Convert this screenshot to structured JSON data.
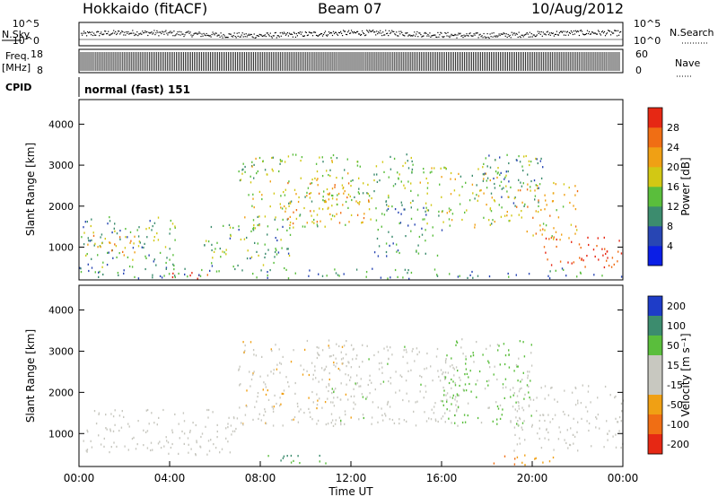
{
  "header": {
    "station": "Hokkaido (fitACF)",
    "beam": "Beam 07",
    "date": "10/Aug/2012"
  },
  "strips": {
    "noise": {
      "left_label_top": "N.Sky",
      "left_ticks": [
        "10^5",
        "10^0"
      ],
      "right_ticks": [
        "10^5",
        "10^0"
      ],
      "right_label": "N.Search"
    },
    "freq": {
      "left_label_top": "Freq.",
      "left_label_unit": "[MHz]",
      "left_ticks": [
        "18",
        "8"
      ],
      "right_ticks": [
        "60",
        "0"
      ],
      "right_label": "Nave"
    },
    "cpid": {
      "left_label": "CPID",
      "text": "normal (fast) 151"
    }
  },
  "chart_data": [
    {
      "type": "heatmap",
      "title": "",
      "ylabel": "Slant Range [km]",
      "xlabel": "",
      "xlim": [
        0,
        24
      ],
      "ylim": [
        200,
        4600
      ],
      "yticks": [
        "1000",
        "2000",
        "3000",
        "4000"
      ],
      "colorbar": {
        "label": "Power [dB]",
        "ticks": [
          "4",
          "8",
          "12",
          "16",
          "20",
          "24",
          "28"
        ],
        "colors": [
          "#0a1ee6",
          "#2846b4",
          "#3c8c6e",
          "#5abe3c",
          "#d2c814",
          "#f0a014",
          "#f06e14",
          "#e62814"
        ],
        "range": [
          0,
          32
        ]
      },
      "regions": [
        {
          "t0": 0,
          "t1": 4.5,
          "r0": 500,
          "r1": 1800,
          "level": 12
        },
        {
          "t0": 0,
          "t1": 2.5,
          "r0": 800,
          "r1": 1300,
          "level": 22
        },
        {
          "t0": 4,
          "t1": 6,
          "r0": 250,
          "r1": 450,
          "level": 30
        },
        {
          "t0": 5.5,
          "t1": 9.5,
          "r0": 500,
          "r1": 1600,
          "level": 13
        },
        {
          "t0": 7,
          "t1": 12,
          "r0": 1500,
          "r1": 3300,
          "level": 16
        },
        {
          "t0": 9,
          "t1": 13,
          "r0": 1600,
          "r1": 2600,
          "level": 22
        },
        {
          "t0": 12,
          "t1": 15,
          "r0": 2000,
          "r1": 3300,
          "level": 14
        },
        {
          "t0": 13,
          "t1": 16,
          "r0": 800,
          "r1": 2000,
          "level": 10
        },
        {
          "t0": 15,
          "t1": 19,
          "r0": 1500,
          "r1": 3000,
          "level": 17
        },
        {
          "t0": 17.5,
          "t1": 20.5,
          "r0": 2000,
          "r1": 3300,
          "level": 11
        },
        {
          "t0": 19,
          "t1": 22,
          "r0": 1200,
          "r1": 2600,
          "level": 21
        },
        {
          "t0": 20.5,
          "t1": 24,
          "r0": 500,
          "r1": 1300,
          "level": 30
        },
        {
          "t0": 0,
          "t1": 24,
          "r0": 250,
          "r1": 500,
          "level": 10
        }
      ]
    },
    {
      "type": "heatmap",
      "title": "",
      "ylabel": "Slant Range [km]",
      "xlabel": "Time UT",
      "xlim": [
        0,
        24
      ],
      "ylim": [
        200,
        4600
      ],
      "xticks": [
        "00:00",
        "04:00",
        "08:00",
        "12:00",
        "16:00",
        "20:00",
        "00:00"
      ],
      "yticks": [
        "1000",
        "2000",
        "3000",
        "4000"
      ],
      "colorbar": {
        "label": "Velocity [m s⁻¹]",
        "ticks": [
          "200",
          "100",
          "50",
          "15",
          "-15",
          "-50",
          "-100",
          "-200"
        ],
        "colors": [
          "#1e3cc8",
          "#3c8c6e",
          "#5abe3c",
          "#c8c8c0",
          "#c8c8c0",
          "#f0a014",
          "#f06e14",
          "#e62814"
        ]
      },
      "regions": [
        {
          "t0": 0,
          "t1": 7,
          "r0": 500,
          "r1": 1600,
          "value": 0
        },
        {
          "t0": 7,
          "t1": 12,
          "r0": 1200,
          "r1": 3300,
          "value": -10
        },
        {
          "t0": 11,
          "t1": 17,
          "r0": 1200,
          "r1": 3200,
          "value": 5
        },
        {
          "t0": 16,
          "t1": 20,
          "r0": 1200,
          "r1": 3400,
          "value": 40
        },
        {
          "t0": 19,
          "t1": 24,
          "r0": 600,
          "r1": 2200,
          "value": 0
        },
        {
          "t0": 8,
          "t1": 11,
          "r0": 250,
          "r1": 500,
          "value": 60
        },
        {
          "t0": 18,
          "t1": 21,
          "r0": 250,
          "r1": 500,
          "value": -60
        }
      ]
    }
  ]
}
